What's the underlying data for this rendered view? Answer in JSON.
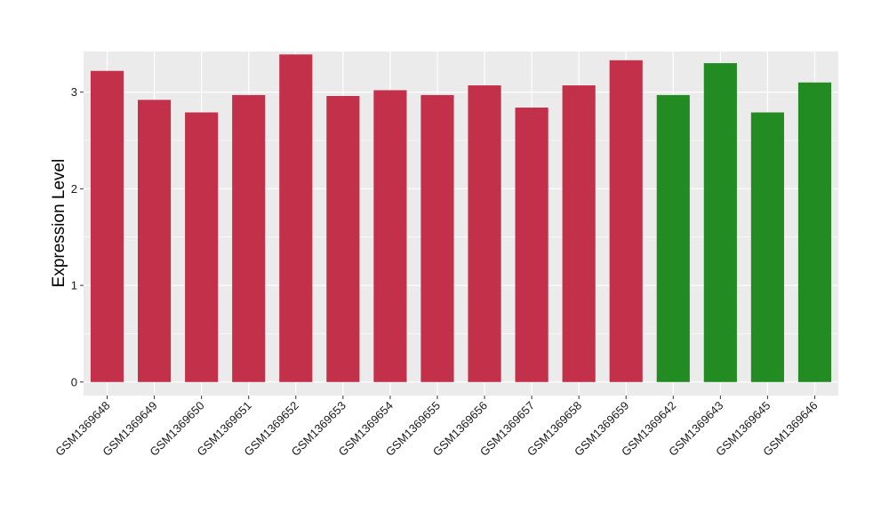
{
  "chart_data": {
    "type": "bar",
    "title": "",
    "xlabel": "",
    "ylabel": "Expression Level",
    "categories": [
      "GSM1369648",
      "GSM1369649",
      "GSM1369650",
      "GSM1369651",
      "GSM1369652",
      "GSM1369653",
      "GSM1369654",
      "GSM1369655",
      "GSM1369656",
      "GSM1369657",
      "GSM1369658",
      "GSM1369659",
      "GSM1369642",
      "GSM1369643",
      "GSM1369645",
      "GSM1369646"
    ],
    "values": [
      3.22,
      2.92,
      2.79,
      2.97,
      3.39,
      2.96,
      3.02,
      2.97,
      3.07,
      2.84,
      3.07,
      3.33,
      2.97,
      3.3,
      2.79,
      3.1
    ],
    "groups": [
      1,
      1,
      1,
      1,
      1,
      1,
      1,
      1,
      1,
      1,
      1,
      1,
      2,
      2,
      2,
      2
    ],
    "colors": {
      "group1": "#C3304A",
      "group2": "#228B22"
    },
    "ylim": [
      -0.14,
      3.42
    ],
    "yticks": [
      0,
      1,
      2,
      3
    ],
    "ytick_labels": [
      "0",
      "1",
      "2",
      "3"
    ],
    "grid": true,
    "panel_background": "#EBEBEB",
    "grid_color": "#FFFFFF"
  }
}
